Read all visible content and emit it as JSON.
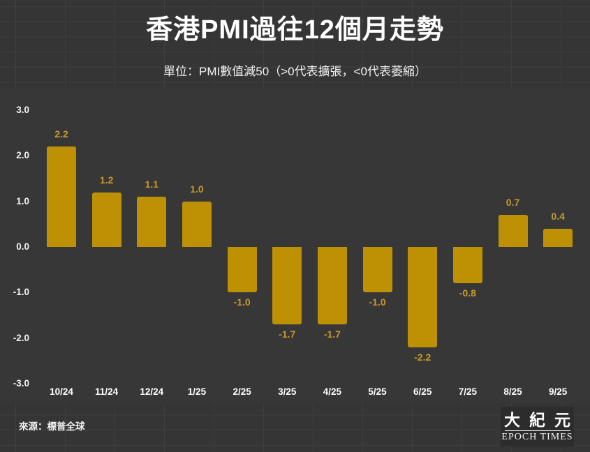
{
  "page": {
    "title": "香港PMI過往12個月走勢",
    "subtitle": "單位：PMI數值減50（>0代表擴張，<0代表萎縮）",
    "source": "來源：標普全球",
    "logo": {
      "cn": "大紀元",
      "en": "EPOCH TIMES"
    },
    "colors": {
      "background": "#353535",
      "plot_background": "#373737",
      "bar": "#BE9104",
      "value_label": "#C9992B",
      "text": "#FFFFFF"
    }
  },
  "chart_data": {
    "type": "bar",
    "title": "香港PMI過往12個月走勢",
    "subtitle": "單位：PMI數值減50（>0代表擴張，<0代表萎縮）",
    "categories": [
      "10/24",
      "11/24",
      "12/24",
      "1/25",
      "2/25",
      "3/25",
      "4/25",
      "5/25",
      "6/25",
      "7/25",
      "8/25",
      "9/25"
    ],
    "values": [
      2.2,
      1.2,
      1.1,
      1.0,
      -1.0,
      -1.7,
      -1.7,
      -1.0,
      -2.2,
      -0.8,
      0.7,
      0.4
    ],
    "xlabel": "",
    "ylabel": "",
    "ylim": [
      -3.0,
      3.0
    ],
    "yticks": [
      "3.0",
      "2.0",
      "1.0",
      "0.0",
      "-1.0",
      "-2.0",
      "-3.0"
    ],
    "grid": false,
    "legend": false,
    "bar_color": "#BE9104",
    "value_label_color": "#C9992B",
    "source": "來源：標普全球"
  }
}
